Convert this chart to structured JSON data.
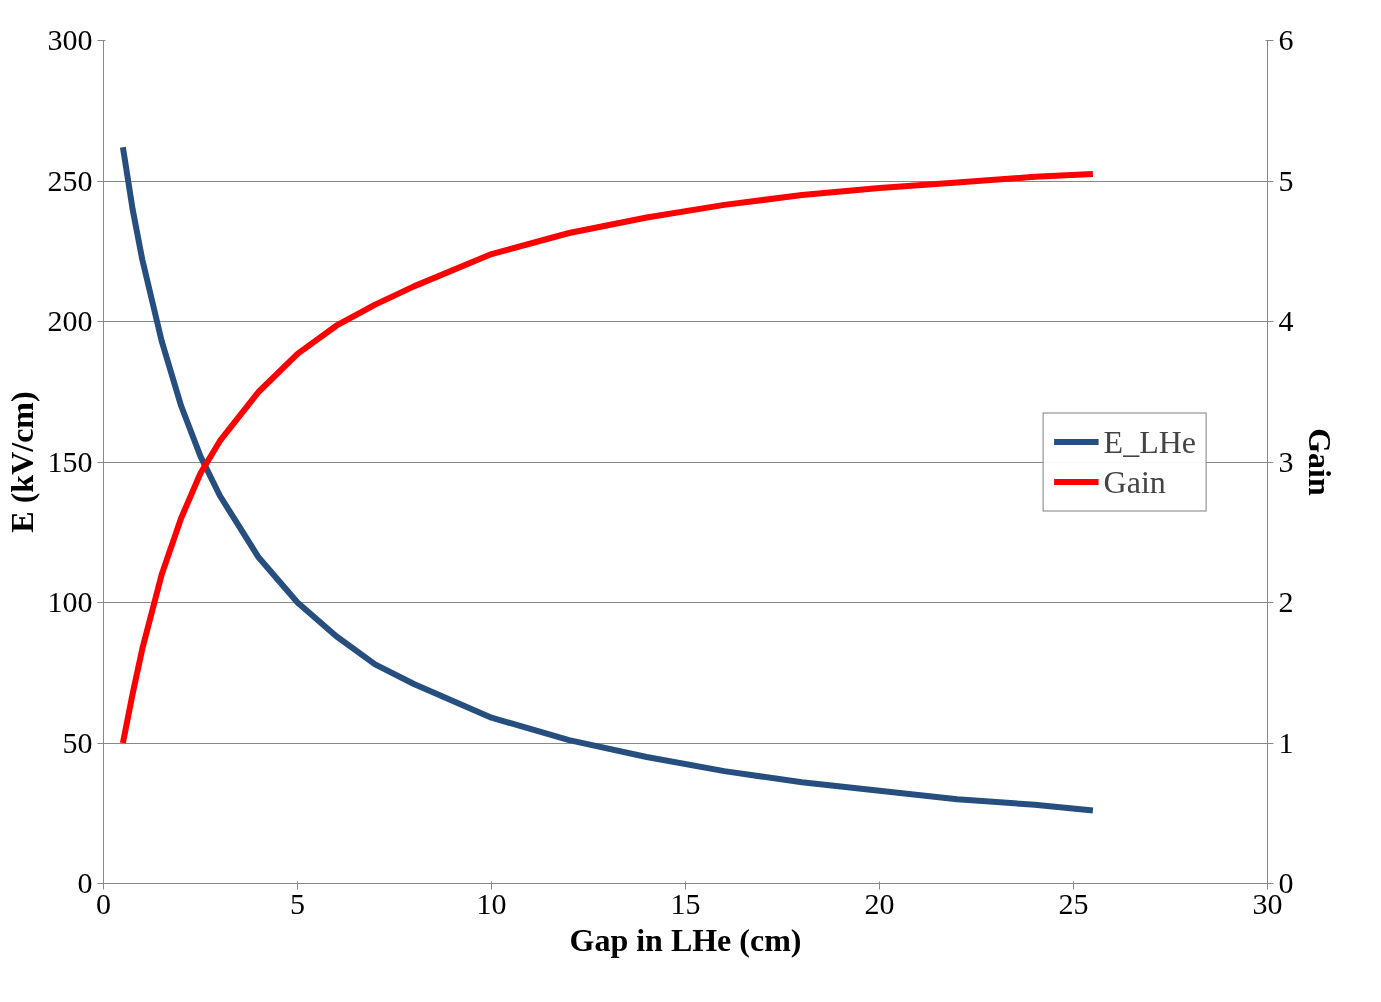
{
  "chart_data": {
    "type": "line",
    "xlabel": "Gap in LHe (cm)",
    "ylabel": "E (kV/cm)",
    "y2label": "Gain",
    "x": [
      0.5,
      0.75,
      1,
      1.5,
      2,
      2.5,
      3,
      4,
      5,
      6,
      7,
      8,
      10,
      12,
      14,
      16,
      18,
      20,
      22,
      24,
      25.5
    ],
    "series": [
      {
        "name": "E_LHe",
        "color": "#264f7f",
        "values": [
          262,
          240,
          222,
          193,
          170,
          152,
          138,
          116,
          100,
          88,
          78,
          71,
          59,
          51,
          45,
          40,
          36,
          33,
          30,
          28,
          26
        ]
      },
      {
        "name": "Gain",
        "color": "#ff0000",
        "axis": "y2",
        "values": [
          1.0,
          1.35,
          1.67,
          2.2,
          2.6,
          2.92,
          3.15,
          3.5,
          3.77,
          3.97,
          4.12,
          4.25,
          4.48,
          4.63,
          4.74,
          4.83,
          4.9,
          4.95,
          4.99,
          5.03,
          5.05
        ]
      }
    ],
    "xlim": [
      0,
      30
    ],
    "xticks": [
      0,
      5,
      10,
      15,
      20,
      25,
      30
    ],
    "ylim": [
      0,
      300
    ],
    "yticks": [
      0,
      50,
      100,
      150,
      200,
      250,
      300
    ],
    "y2lim": [
      0,
      6
    ],
    "y2ticks": [
      0,
      1,
      2,
      3,
      4,
      5,
      6
    ],
    "grid": "y",
    "legend": "right",
    "marker": "none",
    "line_style": "solid"
  }
}
